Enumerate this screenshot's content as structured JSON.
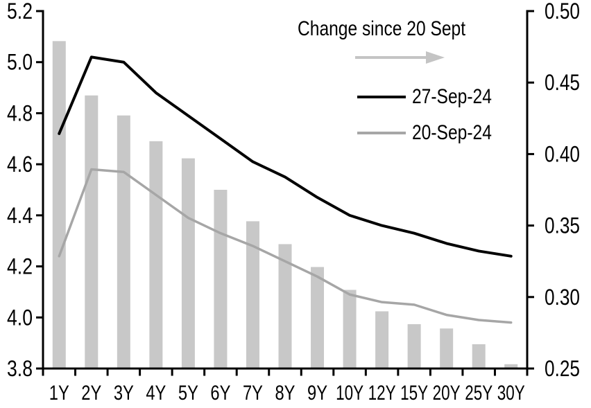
{
  "legend": {
    "title": "Change since 20 Sept",
    "arrow_icon": "right-arrow",
    "series": [
      {
        "label": "27-Sep-24",
        "color": "#000000"
      },
      {
        "label": "20-Sep-24",
        "color": "#a6a6a6"
      }
    ]
  },
  "colors": {
    "background": "#ffffff",
    "axis": "#000000",
    "bars": "#c8c8c8",
    "line_27sep": "#000000",
    "line_20sep": "#a6a6a6",
    "arrow": "#c4c4c4"
  },
  "chart_data": {
    "type": "combo-bar-line",
    "title": "",
    "categories": [
      "1Y",
      "2Y",
      "3Y",
      "4Y",
      "5Y",
      "6Y",
      "7Y",
      "8Y",
      "9Y",
      "10Y",
      "12Y",
      "15Y",
      "20Y",
      "25Y",
      "30Y"
    ],
    "series": [
      {
        "name": "Change since 20 Sept",
        "type": "bar",
        "axis": "right",
        "values": [
          0.479,
          0.441,
          0.427,
          0.409,
          0.397,
          0.375,
          0.353,
          0.337,
          0.321,
          0.305,
          0.29,
          0.281,
          0.278,
          0.267,
          0.253
        ]
      },
      {
        "name": "27-Sep-24",
        "type": "line",
        "axis": "left",
        "values": [
          4.72,
          5.02,
          5.0,
          4.88,
          4.79,
          4.7,
          4.61,
          4.55,
          4.47,
          4.4,
          4.36,
          4.33,
          4.29,
          4.26,
          4.24
        ]
      },
      {
        "name": "20-Sep-24",
        "type": "line",
        "axis": "left",
        "values": [
          4.24,
          4.58,
          4.57,
          4.48,
          4.39,
          4.33,
          4.28,
          4.22,
          4.16,
          4.09,
          4.06,
          4.05,
          4.01,
          3.99,
          3.98
        ]
      }
    ],
    "left_axis": {
      "min": 3.8,
      "max": 5.2,
      "tick_labels": [
        "5.2",
        "5.0",
        "4.8",
        "4.6",
        "4.4",
        "4.2",
        "4.0",
        "3.8"
      ]
    },
    "right_axis": {
      "min": 0.25,
      "max": 0.5,
      "tick_labels": [
        "0.50",
        "0.45",
        "0.40",
        "0.35",
        "0.30",
        "0.25"
      ]
    },
    "grid": false,
    "legend_position": "top-right-inside"
  }
}
